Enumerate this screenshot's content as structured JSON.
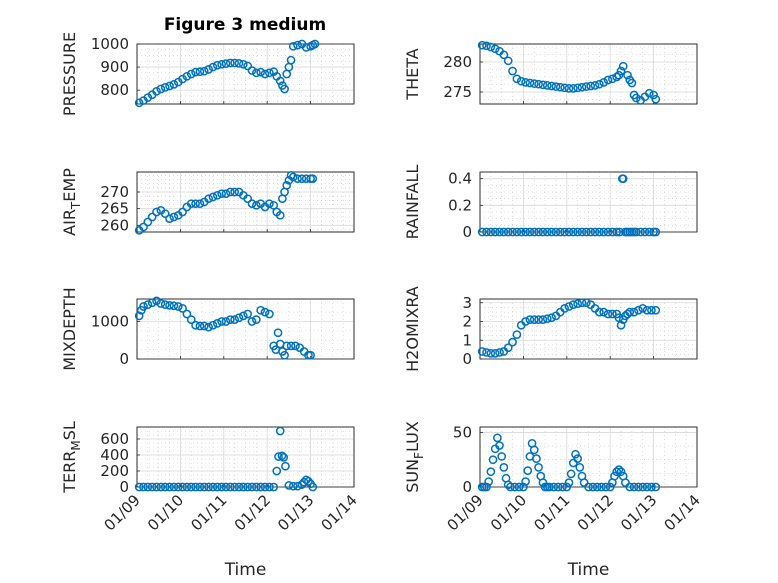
{
  "title": "Figure 3 medium",
  "chart_data": [
    {
      "type": "scatter",
      "ylabel": "PRESSURE",
      "xlabel": "",
      "ylim": [
        740,
        1000
      ],
      "yticks": [
        800,
        900,
        1000
      ],
      "xlim": [
        0,
        5
      ],
      "xtick_labels": [
        "01/09",
        "01/10",
        "01/11",
        "01/12",
        "01/13",
        "01/14"
      ],
      "grid": true,
      "minor_grid": true,
      "series": [
        {
          "color": "#0072BD",
          "x": [
            0.05,
            0.15,
            0.25,
            0.35,
            0.45,
            0.55,
            0.65,
            0.75,
            0.85,
            0.95,
            1.05,
            1.15,
            1.25,
            1.35,
            1.45,
            1.55,
            1.65,
            1.75,
            1.85,
            1.95,
            2.05,
            2.15,
            2.25,
            2.35,
            2.45,
            2.55,
            2.65,
            2.75,
            2.85,
            2.95,
            3.05,
            3.15,
            3.22,
            3.3,
            3.35,
            3.4,
            3.45,
            3.5,
            3.55,
            3.6,
            3.7,
            3.8,
            3.9,
            4.0,
            4.05,
            4.1
          ],
          "y": [
            745,
            755,
            768,
            780,
            795,
            805,
            812,
            818,
            825,
            835,
            848,
            860,
            870,
            878,
            880,
            882,
            890,
            900,
            908,
            912,
            915,
            918,
            918,
            916,
            912,
            905,
            885,
            875,
            878,
            870,
            875,
            880,
            860,
            840,
            820,
            805,
            870,
            900,
            930,
            990,
            995,
            1000,
            985,
            990,
            995,
            1000
          ]
        }
      ]
    },
    {
      "type": "scatter",
      "ylabel": "THETA",
      "xlabel": "",
      "ylim": [
        273,
        283
      ],
      "yticks": [
        275,
        280
      ],
      "xlim": [
        0,
        5
      ],
      "xtick_labels": [
        "01/09",
        "01/10",
        "01/11",
        "01/12",
        "01/13",
        "01/14"
      ],
      "grid": true,
      "minor_grid": true,
      "series": [
        {
          "color": "#0072BD",
          "x": [
            0.05,
            0.15,
            0.25,
            0.35,
            0.45,
            0.55,
            0.65,
            0.75,
            0.85,
            0.95,
            1.05,
            1.15,
            1.25,
            1.35,
            1.45,
            1.55,
            1.65,
            1.75,
            1.85,
            1.95,
            2.05,
            2.15,
            2.25,
            2.35,
            2.45,
            2.55,
            2.65,
            2.75,
            2.85,
            2.95,
            3.05,
            3.15,
            3.2,
            3.25,
            3.3,
            3.4,
            3.45,
            3.5,
            3.55,
            3.6,
            3.7,
            3.8,
            3.9,
            4.0,
            4.05
          ],
          "y": [
            282.8,
            282.7,
            282.5,
            282.2,
            281.8,
            281.2,
            280.2,
            278.5,
            277.2,
            276.8,
            276.6,
            276.5,
            276.4,
            276.3,
            276.2,
            276.1,
            276.0,
            275.9,
            275.8,
            275.7,
            275.6,
            275.6,
            275.7,
            275.8,
            275.9,
            276.0,
            276.1,
            276.3,
            276.6,
            277.0,
            277.2,
            277.5,
            277.8,
            278.5,
            279.3,
            277.8,
            277.0,
            276.5,
            274.5,
            274.0,
            273.6,
            274.2,
            274.8,
            274.5,
            273.8
          ]
        }
      ]
    },
    {
      "type": "scatter",
      "ylabel": "AIR_T_EMP",
      "xlabel": "",
      "ylim": [
        258,
        276
      ],
      "yticks": [
        260,
        265,
        270
      ],
      "xlim": [
        0,
        5
      ],
      "xtick_labels": [
        "01/09",
        "01/10",
        "01/11",
        "01/12",
        "01/13",
        "01/14"
      ],
      "grid": true,
      "minor_grid": true,
      "series": [
        {
          "color": "#0072BD",
          "x": [
            0.05,
            0.15,
            0.25,
            0.35,
            0.45,
            0.55,
            0.65,
            0.75,
            0.85,
            0.95,
            1.05,
            1.15,
            1.25,
            1.35,
            1.45,
            1.55,
            1.65,
            1.75,
            1.85,
            1.95,
            2.05,
            2.15,
            2.25,
            2.35,
            2.45,
            2.55,
            2.65,
            2.75,
            2.85,
            2.95,
            3.05,
            3.15,
            3.22,
            3.3,
            3.35,
            3.4,
            3.45,
            3.5,
            3.55,
            3.6,
            3.7,
            3.8,
            3.9,
            4.0,
            4.05
          ],
          "y": [
            258.5,
            259.5,
            261.0,
            262.5,
            264.0,
            264.5,
            263.5,
            262.0,
            262.5,
            263.0,
            264.0,
            265.5,
            266.5,
            266.5,
            266.5,
            267.0,
            268.0,
            268.5,
            269.0,
            269.5,
            269.5,
            270.0,
            270.0,
            270.0,
            269.0,
            268.0,
            266.5,
            266.0,
            266.5,
            265.5,
            266.5,
            266.0,
            264.0,
            263.0,
            268.0,
            270.0,
            272.0,
            273.5,
            275.0,
            274.5,
            274.0,
            274.0,
            274.0,
            274.0,
            274.0
          ]
        }
      ]
    },
    {
      "type": "scatter",
      "ylabel": "RAINFALL",
      "xlabel": "",
      "ylim": [
        0,
        0.45
      ],
      "yticks": [
        0,
        0.2,
        0.4
      ],
      "xlim": [
        0,
        5
      ],
      "xtick_labels": [
        "01/09",
        "01/10",
        "01/11",
        "01/12",
        "01/13",
        "01/14"
      ],
      "grid": true,
      "minor_grid": true,
      "series": [
        {
          "color": "#0072BD",
          "x": [
            0.05,
            0.15,
            0.25,
            0.35,
            0.45,
            0.55,
            0.65,
            0.75,
            0.85,
            0.95,
            1.05,
            1.15,
            1.25,
            1.35,
            1.45,
            1.55,
            1.65,
            1.75,
            1.85,
            1.95,
            2.05,
            2.15,
            2.25,
            2.35,
            2.45,
            2.55,
            2.65,
            2.75,
            2.85,
            2.95,
            3.05,
            3.15,
            3.22,
            3.28,
            3.3,
            3.35,
            3.4,
            3.45,
            3.5,
            3.55,
            3.6,
            3.7,
            3.8,
            3.9,
            4.0,
            4.05
          ],
          "y": [
            0,
            0,
            0,
            0,
            0,
            0,
            0,
            0,
            0,
            0,
            0,
            0,
            0,
            0,
            0,
            0,
            0,
            0,
            0,
            0,
            0,
            0,
            0,
            0,
            0,
            0,
            0,
            0,
            0,
            0,
            0,
            0,
            0,
            0.4,
            0.4,
            0,
            0,
            0,
            0,
            0,
            0,
            0,
            0,
            0,
            0,
            0
          ]
        }
      ]
    },
    {
      "type": "scatter",
      "ylabel": "MIXDEPTH",
      "xlabel": "",
      "ylim": [
        0,
        1600
      ],
      "yticks": [
        0,
        1000
      ],
      "xlim": [
        0,
        5
      ],
      "xtick_labels": [
        "01/09",
        "01/10",
        "01/11",
        "01/12",
        "01/13",
        "01/14"
      ],
      "grid": true,
      "minor_grid": true,
      "series": [
        {
          "color": "#0072BD",
          "x": [
            0.05,
            0.1,
            0.15,
            0.25,
            0.35,
            0.45,
            0.55,
            0.65,
            0.75,
            0.85,
            0.95,
            1.05,
            1.15,
            1.25,
            1.35,
            1.45,
            1.55,
            1.65,
            1.75,
            1.85,
            1.95,
            2.05,
            2.15,
            2.25,
            2.35,
            2.45,
            2.55,
            2.65,
            2.75,
            2.85,
            2.95,
            3.05,
            3.15,
            3.2,
            3.25,
            3.3,
            3.35,
            3.4,
            3.45,
            3.55,
            3.65,
            3.75,
            3.85,
            3.95,
            4.0
          ],
          "y": [
            1150,
            1300,
            1400,
            1450,
            1500,
            1550,
            1480,
            1450,
            1430,
            1420,
            1400,
            1350,
            1200,
            1050,
            900,
            880,
            880,
            850,
            900,
            950,
            1000,
            1000,
            1050,
            1050,
            1100,
            1150,
            1200,
            1000,
            1050,
            1300,
            1250,
            1200,
            350,
            250,
            700,
            400,
            200,
            100,
            350,
            350,
            350,
            300,
            200,
            100,
            100
          ]
        }
      ]
    },
    {
      "type": "scatter",
      "ylabel": "H2OMIXRA",
      "xlabel": "",
      "ylim": [
        0,
        3.2
      ],
      "yticks": [
        0,
        1,
        2,
        3
      ],
      "xlim": [
        0,
        5
      ],
      "xtick_labels": [
        "01/09",
        "01/10",
        "01/11",
        "01/12",
        "01/13",
        "01/14"
      ],
      "grid": true,
      "minor_grid": true,
      "series": [
        {
          "color": "#0072BD",
          "x": [
            0.05,
            0.15,
            0.25,
            0.35,
            0.45,
            0.55,
            0.65,
            0.75,
            0.85,
            0.95,
            1.05,
            1.15,
            1.25,
            1.35,
            1.45,
            1.55,
            1.65,
            1.75,
            1.85,
            1.95,
            2.05,
            2.15,
            2.25,
            2.35,
            2.45,
            2.55,
            2.65,
            2.75,
            2.85,
            2.95,
            3.05,
            3.15,
            3.2,
            3.25,
            3.3,
            3.35,
            3.4,
            3.45,
            3.55,
            3.65,
            3.75,
            3.85,
            3.95,
            4.05
          ],
          "y": [
            0.4,
            0.35,
            0.3,
            0.3,
            0.35,
            0.4,
            0.6,
            0.9,
            1.3,
            1.8,
            2.0,
            2.1,
            2.1,
            2.1,
            2.1,
            2.15,
            2.2,
            2.3,
            2.5,
            2.7,
            2.8,
            2.9,
            2.95,
            3.0,
            3.0,
            2.9,
            2.7,
            2.5,
            2.5,
            2.4,
            2.4,
            2.4,
            2.2,
            1.8,
            2.1,
            2.3,
            2.4,
            2.5,
            2.5,
            2.6,
            2.7,
            2.6,
            2.6,
            2.6
          ]
        }
      ]
    },
    {
      "type": "scatter",
      "ylabel": "TERR_M_SL",
      "xlabel": "Time",
      "ylim": [
        0,
        750
      ],
      "yticks": [
        0,
        200,
        400,
        600
      ],
      "xlim": [
        0,
        5
      ],
      "xtick_labels": [
        "01/09",
        "01/10",
        "01/11",
        "01/12",
        "01/13",
        "01/14"
      ],
      "grid": true,
      "minor_grid": true,
      "series": [
        {
          "color": "#0072BD",
          "x": [
            0.05,
            0.15,
            0.25,
            0.35,
            0.45,
            0.55,
            0.65,
            0.75,
            0.85,
            0.95,
            1.05,
            1.15,
            1.25,
            1.35,
            1.45,
            1.55,
            1.65,
            1.75,
            1.85,
            1.95,
            2.05,
            2.15,
            2.25,
            2.35,
            2.45,
            2.55,
            2.65,
            2.75,
            2.85,
            2.95,
            3.05,
            3.15,
            3.22,
            3.26,
            3.3,
            3.34,
            3.38,
            3.42,
            3.5,
            3.6,
            3.7,
            3.8,
            3.85,
            3.9,
            3.95,
            4.0,
            4.05
          ],
          "y": [
            0,
            0,
            0,
            0,
            0,
            0,
            0,
            0,
            0,
            0,
            0,
            0,
            0,
            0,
            0,
            0,
            0,
            0,
            0,
            0,
            0,
            0,
            0,
            0,
            0,
            0,
            0,
            0,
            0,
            0,
            0,
            0,
            200,
            380,
            700,
            390,
            370,
            260,
            20,
            10,
            10,
            30,
            60,
            90,
            70,
            40,
            0
          ]
        }
      ]
    },
    {
      "type": "scatter",
      "ylabel": "SUN_F_LUX",
      "xlabel": "Time",
      "ylim": [
        0,
        55
      ],
      "yticks": [
        0,
        50
      ],
      "xlim": [
        0,
        5
      ],
      "xtick_labels": [
        "01/09",
        "01/10",
        "01/11",
        "01/12",
        "01/13",
        "01/14"
      ],
      "grid": true,
      "minor_grid": true,
      "series": [
        {
          "color": "#0072BD",
          "x": [
            0.05,
            0.1,
            0.15,
            0.2,
            0.25,
            0.3,
            0.35,
            0.4,
            0.45,
            0.5,
            0.55,
            0.6,
            0.65,
            0.7,
            0.8,
            0.9,
            1.0,
            1.05,
            1.1,
            1.15,
            1.2,
            1.25,
            1.3,
            1.35,
            1.4,
            1.45,
            1.5,
            1.55,
            1.6,
            1.7,
            1.8,
            1.9,
            2.0,
            2.05,
            2.1,
            2.15,
            2.2,
            2.25,
            2.3,
            2.35,
            2.4,
            2.5,
            2.6,
            2.7,
            2.8,
            2.9,
            3.0,
            3.05,
            3.1,
            3.15,
            3.2,
            3.25,
            3.3,
            3.35,
            3.45,
            3.55,
            3.65,
            3.75,
            3.85,
            3.95,
            4.05
          ],
          "y": [
            0,
            0,
            0,
            5,
            14,
            25,
            35,
            45,
            38,
            28,
            18,
            8,
            2,
            0,
            0,
            0,
            0,
            5,
            15,
            28,
            40,
            34,
            26,
            18,
            10,
            4,
            0,
            0,
            0,
            0,
            0,
            0,
            0,
            4,
            12,
            22,
            30,
            26,
            18,
            10,
            4,
            0,
            0,
            0,
            0,
            0,
            0,
            4,
            10,
            14,
            16,
            14,
            10,
            4,
            0,
            0,
            0,
            0,
            0,
            0,
            0
          ]
        }
      ]
    }
  ]
}
